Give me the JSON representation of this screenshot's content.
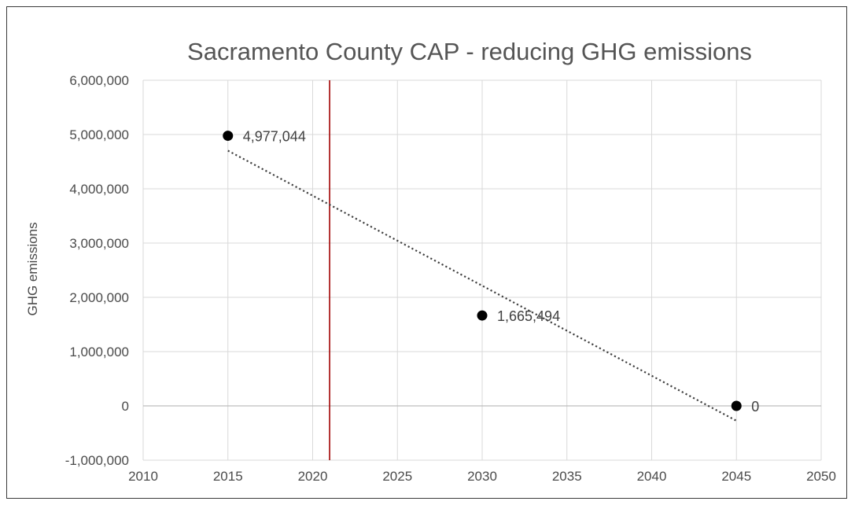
{
  "chart_data": {
    "type": "scatter",
    "title": "Sacramento County CAP - reducing GHG emissions",
    "xlabel": "",
    "ylabel": "GHG emissions",
    "xlim": [
      2010,
      2050
    ],
    "ylim": [
      -1000000,
      6000000
    ],
    "x_ticks": [
      "2010",
      "2015",
      "2020",
      "2025",
      "2030",
      "2035",
      "2040",
      "2045",
      "2050"
    ],
    "y_ticks": [
      "-1,000,000",
      "0",
      "1,000,000",
      "2,000,000",
      "3,000,000",
      "4,000,000",
      "5,000,000",
      "6,000,000"
    ],
    "grid": true,
    "legend": "none",
    "series": [
      {
        "points": [
          {
            "x": 2015,
            "y": 4977044,
            "label": "4,977,044"
          },
          {
            "x": 2030,
            "y": 1665494,
            "label": "1,665,494"
          },
          {
            "x": 2045,
            "y": 0,
            "label": "0"
          }
        ],
        "color": "#000000",
        "trendline": {
          "type": "linear",
          "style": "dotted",
          "color": "#404040"
        }
      }
    ],
    "reference_line": {
      "x": 2021,
      "color": "#a00000"
    }
  }
}
